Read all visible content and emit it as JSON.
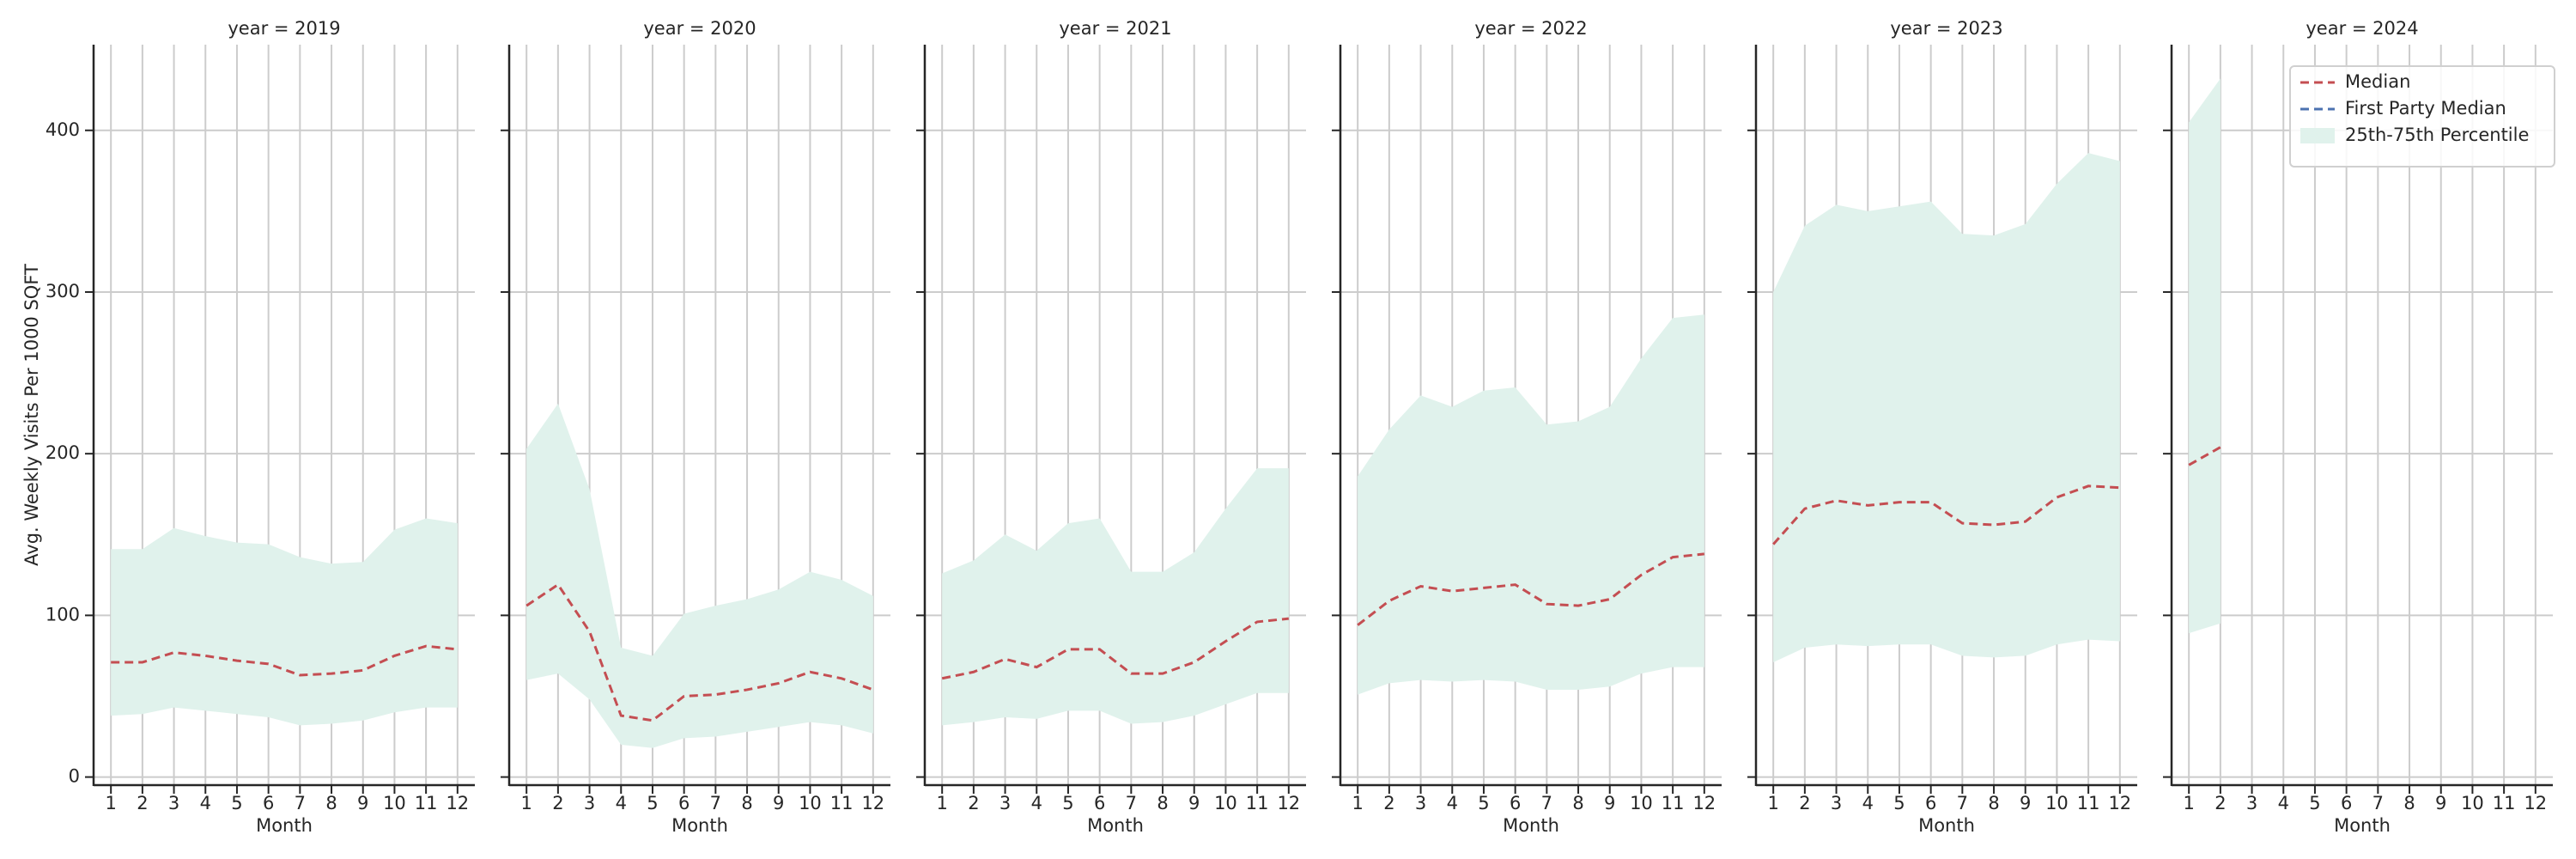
{
  "chart_data": [
    {
      "type": "line",
      "title": "year = 2019",
      "xlabel": "Month",
      "ylabel": "Avg. Weekly Visits Per 1000 SQFT",
      "x": [
        1,
        2,
        3,
        4,
        5,
        6,
        7,
        8,
        9,
        10,
        11,
        12
      ],
      "xlim": [
        0.45,
        12.55
      ],
      "xticks": [
        1,
        2,
        3,
        4,
        5,
        6,
        7,
        8,
        9,
        10,
        11,
        12
      ],
      "ylim": [
        -5,
        453
      ],
      "yticks": [
        0,
        100,
        200,
        300,
        400
      ],
      "grid": true,
      "series": [
        {
          "color": "#c44e52",
          "values": [
            71,
            71,
            77,
            75,
            72,
            70,
            63,
            64,
            66,
            75,
            81,
            79
          ]
        },
        {
          "color": "#4c72b0",
          "values": [
            null,
            null,
            null,
            null,
            null,
            null,
            null,
            null,
            null,
            null,
            null,
            null
          ]
        }
      ],
      "band": {
        "color": "#e0f2ec",
        "upper": [
          141,
          141,
          154,
          149,
          145,
          144,
          136,
          132,
          133,
          153,
          160,
          157
        ],
        "lower": [
          38,
          39,
          43,
          41,
          39,
          37,
          32,
          33,
          35,
          40,
          43,
          43
        ]
      }
    },
    {
      "type": "line",
      "title": "year = 2020",
      "xlabel": "Month",
      "x": [
        1,
        2,
        3,
        4,
        5,
        6,
        7,
        8,
        9,
        10,
        11,
        12
      ],
      "xlim": [
        0.45,
        12.55
      ],
      "xticks": [
        1,
        2,
        3,
        4,
        5,
        6,
        7,
        8,
        9,
        10,
        11,
        12
      ],
      "ylim": [
        -5,
        453
      ],
      "yticks": [
        0,
        100,
        200,
        300,
        400
      ],
      "grid": true,
      "series": [
        {
          "color": "#c44e52",
          "values": [
            106,
            119,
            90,
            38,
            35,
            50,
            51,
            54,
            58,
            65,
            61,
            54
          ]
        },
        {
          "color": "#4c72b0",
          "values": [
            null,
            null,
            null,
            null,
            null,
            null,
            null,
            null,
            null,
            null,
            null,
            null
          ]
        }
      ],
      "band": {
        "color": "#e0f2ec",
        "upper": [
          203,
          231,
          178,
          80,
          75,
          101,
          106,
          110,
          116,
          127,
          122,
          112
        ],
        "lower": [
          60,
          64,
          48,
          20,
          18,
          24,
          25,
          28,
          31,
          34,
          32,
          27
        ]
      }
    },
    {
      "type": "line",
      "title": "year = 2021",
      "xlabel": "Month",
      "x": [
        1,
        2,
        3,
        4,
        5,
        6,
        7,
        8,
        9,
        10,
        11,
        12
      ],
      "xlim": [
        0.45,
        12.55
      ],
      "xticks": [
        1,
        2,
        3,
        4,
        5,
        6,
        7,
        8,
        9,
        10,
        11,
        12
      ],
      "ylim": [
        -5,
        453
      ],
      "yticks": [
        0,
        100,
        200,
        300,
        400
      ],
      "grid": true,
      "series": [
        {
          "color": "#c44e52",
          "values": [
            61,
            65,
            73,
            68,
            79,
            79,
            64,
            64,
            71,
            84,
            96,
            98
          ]
        },
        {
          "color": "#4c72b0",
          "values": [
            null,
            null,
            null,
            null,
            null,
            null,
            null,
            null,
            null,
            null,
            null,
            null
          ]
        }
      ],
      "band": {
        "color": "#e0f2ec",
        "upper": [
          126,
          134,
          150,
          140,
          157,
          160,
          127,
          127,
          139,
          166,
          191,
          191
        ],
        "lower": [
          32,
          34,
          37,
          36,
          41,
          41,
          33,
          34,
          38,
          45,
          52,
          52
        ]
      }
    },
    {
      "type": "line",
      "title": "year = 2022",
      "xlabel": "Month",
      "x": [
        1,
        2,
        3,
        4,
        5,
        6,
        7,
        8,
        9,
        10,
        11,
        12
      ],
      "xlim": [
        0.45,
        12.55
      ],
      "xticks": [
        1,
        2,
        3,
        4,
        5,
        6,
        7,
        8,
        9,
        10,
        11,
        12
      ],
      "ylim": [
        -5,
        453
      ],
      "yticks": [
        0,
        100,
        200,
        300,
        400
      ],
      "grid": true,
      "series": [
        {
          "color": "#c44e52",
          "values": [
            94,
            109,
            118,
            115,
            117,
            119,
            107,
            106,
            110,
            125,
            136,
            138
          ]
        },
        {
          "color": "#4c72b0",
          "values": [
            null,
            null,
            null,
            null,
            null,
            null,
            null,
            null,
            null,
            null,
            null,
            null
          ]
        }
      ],
      "band": {
        "color": "#e0f2ec",
        "upper": [
          186,
          215,
          236,
          229,
          239,
          241,
          218,
          220,
          229,
          259,
          284,
          286
        ],
        "lower": [
          51,
          58,
          60,
          59,
          60,
          59,
          54,
          54,
          56,
          64,
          68,
          68
        ]
      }
    },
    {
      "type": "line",
      "title": "year = 2023",
      "xlabel": "Month",
      "x": [
        1,
        2,
        3,
        4,
        5,
        6,
        7,
        8,
        9,
        10,
        11,
        12
      ],
      "xlim": [
        0.45,
        12.55
      ],
      "xticks": [
        1,
        2,
        3,
        4,
        5,
        6,
        7,
        8,
        9,
        10,
        11,
        12
      ],
      "ylim": [
        -5,
        453
      ],
      "yticks": [
        0,
        100,
        200,
        300,
        400
      ],
      "grid": true,
      "series": [
        {
          "color": "#c44e52",
          "values": [
            144,
            166,
            171,
            168,
            170,
            170,
            157,
            156,
            158,
            173,
            180,
            179
          ]
        },
        {
          "color": "#4c72b0",
          "values": [
            null,
            null,
            null,
            null,
            null,
            null,
            null,
            null,
            null,
            null,
            null,
            null
          ]
        }
      ],
      "band": {
        "color": "#e0f2ec",
        "upper": [
          300,
          341,
          354,
          350,
          353,
          356,
          336,
          335,
          342,
          367,
          386,
          381
        ],
        "lower": [
          71,
          80,
          82,
          81,
          82,
          82,
          75,
          74,
          75,
          82,
          85,
          84
        ]
      }
    },
    {
      "type": "line",
      "title": "year = 2024",
      "xlabel": "Month",
      "x": [
        1,
        2
      ],
      "xlim": [
        0.45,
        12.55
      ],
      "xticks": [
        1,
        2,
        3,
        4,
        5,
        6,
        7,
        8,
        9,
        10,
        11,
        12
      ],
      "ylim": [
        -5,
        453
      ],
      "yticks": [
        0,
        100,
        200,
        300,
        400
      ],
      "grid": true,
      "legend": "upper right",
      "series": [
        {
          "name": "Median",
          "color": "#c44e52",
          "values": [
            193,
            204
          ]
        },
        {
          "name": "First Party Median",
          "color": "#4c72b0",
          "values": [
            null,
            null
          ]
        }
      ],
      "band": {
        "name": "25th-75th Percentile",
        "color": "#e0f2ec",
        "upper": [
          405,
          432
        ],
        "lower": [
          89,
          95
        ]
      }
    }
  ]
}
